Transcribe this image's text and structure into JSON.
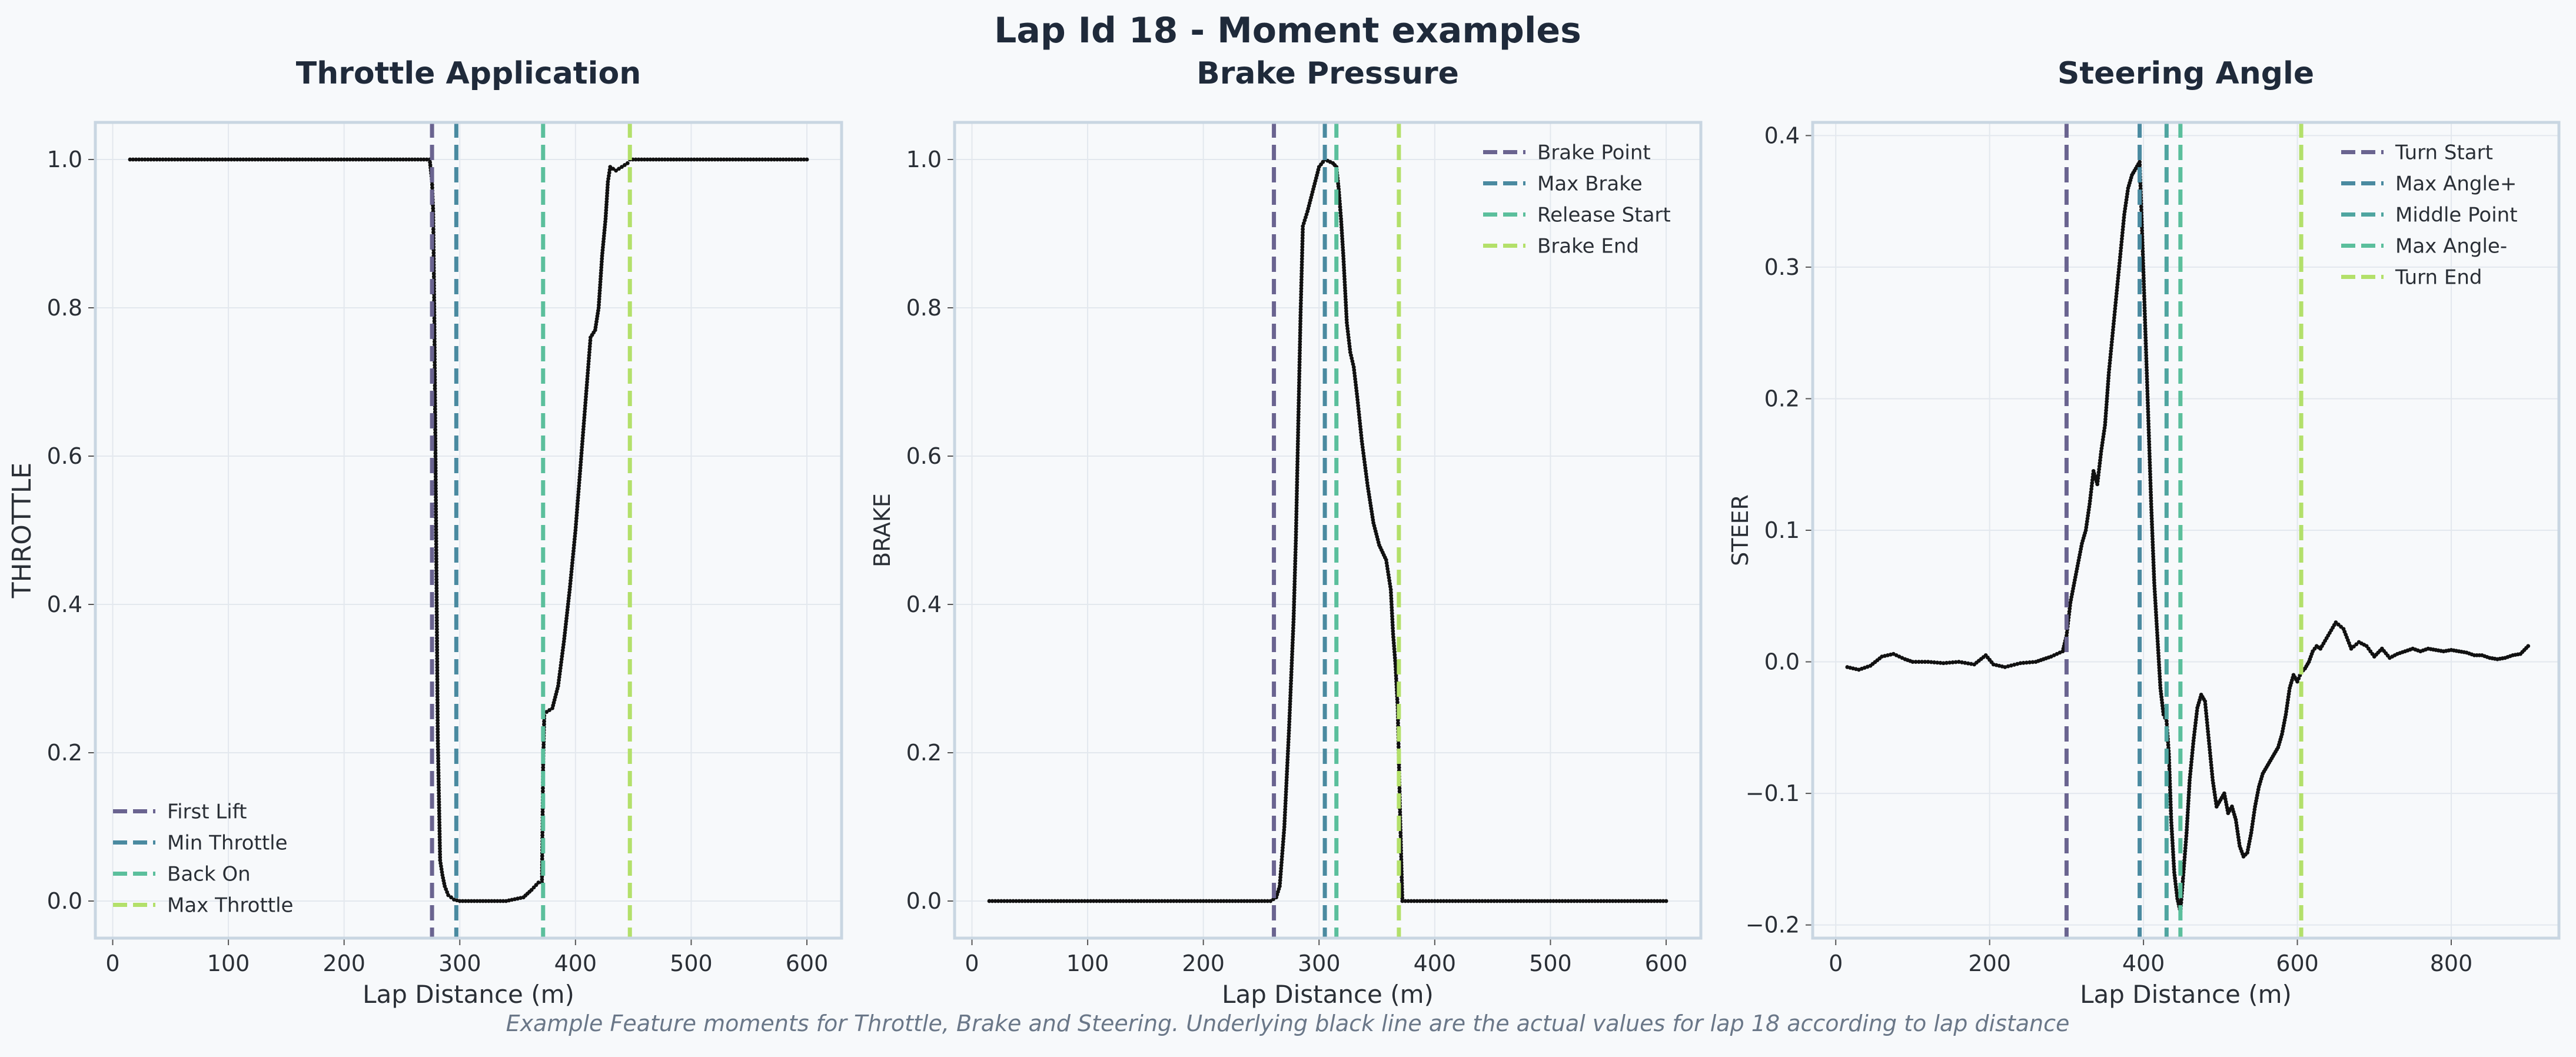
{
  "figure": {
    "title": "Lap Id 18 - Moment examples",
    "caption": "Example Feature moments for Throttle, Brake and Steering. Underlying black line are the actual values for lap 18 according to lap distance"
  },
  "chart_data": [
    {
      "type": "scatter",
      "title": "Throttle Application",
      "xlabel": "Lap Distance (m)",
      "ylabel": "THROTTLE",
      "xlim": [
        -15,
        630
      ],
      "ylim": [
        -0.05,
        1.05
      ],
      "xticks": [
        0,
        100,
        200,
        300,
        400,
        500,
        600
      ],
      "yticks": [
        0.0,
        0.2,
        0.4,
        0.6,
        0.8,
        1.0
      ],
      "grid": true,
      "legend_position": "bottom-left",
      "series": [
        {
          "name": "First Lift",
          "type": "vline",
          "x": 276,
          "color": "#6a6490"
        },
        {
          "name": "Min Throttle",
          "type": "vline",
          "x": 297,
          "color": "#4a8aa0"
        },
        {
          "name": "Back On",
          "type": "vline",
          "x": 372,
          "color": "#5bbf9c"
        },
        {
          "name": "Max Throttle",
          "type": "vline",
          "x": 447,
          "color": "#b3e06a"
        }
      ],
      "points": [
        [
          15,
          1.0
        ],
        [
          100,
          1.0
        ],
        [
          200,
          1.0
        ],
        [
          274,
          1.0
        ],
        [
          276,
          0.97
        ],
        [
          277,
          0.93
        ],
        [
          278,
          0.79
        ],
        [
          279,
          0.6
        ],
        [
          280,
          0.41
        ],
        [
          281,
          0.22
        ],
        [
          283,
          0.055
        ],
        [
          285,
          0.035
        ],
        [
          287,
          0.02
        ],
        [
          290,
          0.008
        ],
        [
          295,
          0.002
        ],
        [
          300,
          0.0
        ],
        [
          320,
          0.0
        ],
        [
          340,
          0.0
        ],
        [
          355,
          0.005
        ],
        [
          362,
          0.015
        ],
        [
          368,
          0.025
        ],
        [
          371,
          0.025
        ],
        [
          372,
          0.18
        ],
        [
          373,
          0.25
        ],
        [
          375,
          0.255
        ],
        [
          380,
          0.26
        ],
        [
          385,
          0.29
        ],
        [
          390,
          0.35
        ],
        [
          395,
          0.42
        ],
        [
          400,
          0.5
        ],
        [
          405,
          0.6
        ],
        [
          410,
          0.7
        ],
        [
          413,
          0.76
        ],
        [
          417,
          0.77
        ],
        [
          420,
          0.8
        ],
        [
          423,
          0.87
        ],
        [
          426,
          0.92
        ],
        [
          428,
          0.97
        ],
        [
          430,
          0.99
        ],
        [
          435,
          0.985
        ],
        [
          440,
          0.99
        ],
        [
          445,
          0.995
        ],
        [
          447,
          1.0
        ],
        [
          500,
          1.0
        ],
        [
          600,
          1.0
        ]
      ]
    },
    {
      "type": "scatter",
      "title": "Brake Pressure",
      "xlabel": "Lap Distance (m)",
      "ylabel": "BRAKE",
      "xlim": [
        -15,
        630
      ],
      "ylim": [
        -0.05,
        1.05
      ],
      "xticks": [
        0,
        100,
        200,
        300,
        400,
        500,
        600
      ],
      "yticks": [
        0.0,
        0.2,
        0.4,
        0.6,
        0.8,
        1.0
      ],
      "grid": true,
      "legend_position": "top-right",
      "series": [
        {
          "name": "Brake Point",
          "type": "vline",
          "x": 261,
          "color": "#6a6490"
        },
        {
          "name": "Max Brake",
          "type": "vline",
          "x": 305,
          "color": "#4a8aa0"
        },
        {
          "name": "Release Start",
          "type": "vline",
          "x": 315,
          "color": "#5bbf9c"
        },
        {
          "name": "Brake End",
          "type": "vline",
          "x": 369,
          "color": "#b3e06a"
        }
      ],
      "points": [
        [
          15,
          0.0
        ],
        [
          100,
          0.0
        ],
        [
          200,
          0.0
        ],
        [
          258,
          0.0
        ],
        [
          263,
          0.005
        ],
        [
          266,
          0.02
        ],
        [
          270,
          0.1
        ],
        [
          274,
          0.23
        ],
        [
          278,
          0.38
        ],
        [
          280,
          0.49
        ],
        [
          282,
          0.64
        ],
        [
          284,
          0.79
        ],
        [
          286,
          0.91
        ],
        [
          290,
          0.93
        ],
        [
          295,
          0.96
        ],
        [
          300,
          0.99
        ],
        [
          305,
          1.0
        ],
        [
          312,
          0.995
        ],
        [
          315,
          0.99
        ],
        [
          317,
          0.96
        ],
        [
          319,
          0.92
        ],
        [
          321,
          0.87
        ],
        [
          324,
          0.78
        ],
        [
          327,
          0.74
        ],
        [
          330,
          0.72
        ],
        [
          333,
          0.68
        ],
        [
          337,
          0.62
        ],
        [
          342,
          0.56
        ],
        [
          347,
          0.51
        ],
        [
          352,
          0.48
        ],
        [
          358,
          0.46
        ],
        [
          362,
          0.42
        ],
        [
          364,
          0.36
        ],
        [
          366,
          0.32
        ],
        [
          368,
          0.26
        ],
        [
          370,
          0.12
        ],
        [
          372,
          0.0
        ],
        [
          400,
          0.0
        ],
        [
          500,
          0.0
        ],
        [
          600,
          0.0
        ]
      ]
    },
    {
      "type": "scatter",
      "title": "Steering Angle",
      "xlabel": "Lap Distance (m)",
      "ylabel": "STEER",
      "xlim": [
        -30,
        940
      ],
      "ylim": [
        -0.21,
        0.41
      ],
      "xticks": [
        0,
        200,
        400,
        600,
        800
      ],
      "yticks": [
        -0.2,
        -0.1,
        0.0,
        0.1,
        0.2,
        0.3,
        0.4
      ],
      "ytick_labels": [
        "−0.2",
        "−0.1",
        "0.0",
        "0.1",
        "0.2",
        "0.3",
        "0.4"
      ],
      "grid": true,
      "legend_position": "top-right",
      "series": [
        {
          "name": "Turn Start",
          "type": "vline",
          "x": 300,
          "color": "#6a6490"
        },
        {
          "name": "Max Angle+",
          "type": "vline",
          "x": 395,
          "color": "#4a8aa0"
        },
        {
          "name": "Middle Point",
          "type": "vline",
          "x": 430,
          "color": "#4fa5a0"
        },
        {
          "name": "Max Angle-",
          "type": "vline",
          "x": 448,
          "color": "#5bbf9c"
        },
        {
          "name": "Turn End",
          "type": "vline",
          "x": 605,
          "color": "#b3e06a"
        }
      ],
      "points": [
        [
          15,
          -0.004
        ],
        [
          30,
          -0.006
        ],
        [
          45,
          -0.003
        ],
        [
          60,
          0.004
        ],
        [
          75,
          0.006
        ],
        [
          90,
          0.002
        ],
        [
          100,
          0.0
        ],
        [
          120,
          0.0
        ],
        [
          140,
          -0.001
        ],
        [
          160,
          0.0
        ],
        [
          180,
          -0.002
        ],
        [
          195,
          0.005
        ],
        [
          205,
          -0.002
        ],
        [
          220,
          -0.004
        ],
        [
          240,
          -0.001
        ],
        [
          260,
          0.0
        ],
        [
          280,
          0.004
        ],
        [
          295,
          0.008
        ],
        [
          300,
          0.02
        ],
        [
          305,
          0.045
        ],
        [
          310,
          0.06
        ],
        [
          315,
          0.075
        ],
        [
          320,
          0.09
        ],
        [
          325,
          0.1
        ],
        [
          330,
          0.12
        ],
        [
          335,
          0.145
        ],
        [
          340,
          0.135
        ],
        [
          345,
          0.16
        ],
        [
          350,
          0.18
        ],
        [
          355,
          0.22
        ],
        [
          360,
          0.25
        ],
        [
          365,
          0.28
        ],
        [
          370,
          0.31
        ],
        [
          375,
          0.34
        ],
        [
          380,
          0.36
        ],
        [
          385,
          0.37
        ],
        [
          390,
          0.375
        ],
        [
          395,
          0.38
        ],
        [
          398,
          0.33
        ],
        [
          402,
          0.26
        ],
        [
          406,
          0.19
        ],
        [
          410,
          0.12
        ],
        [
          414,
          0.06
        ],
        [
          418,
          0.02
        ],
        [
          422,
          -0.02
        ],
        [
          426,
          -0.04
        ],
        [
          430,
          -0.045
        ],
        [
          433,
          -0.07
        ],
        [
          436,
          -0.12
        ],
        [
          440,
          -0.16
        ],
        [
          444,
          -0.18
        ],
        [
          448,
          -0.19
        ],
        [
          452,
          -0.16
        ],
        [
          456,
          -0.13
        ],
        [
          460,
          -0.09
        ],
        [
          465,
          -0.06
        ],
        [
          470,
          -0.035
        ],
        [
          475,
          -0.025
        ],
        [
          480,
          -0.03
        ],
        [
          485,
          -0.06
        ],
        [
          490,
          -0.09
        ],
        [
          495,
          -0.11
        ],
        [
          500,
          -0.105
        ],
        [
          505,
          -0.1
        ],
        [
          510,
          -0.115
        ],
        [
          515,
          -0.11
        ],
        [
          520,
          -0.12
        ],
        [
          525,
          -0.14
        ],
        [
          530,
          -0.148
        ],
        [
          535,
          -0.145
        ],
        [
          540,
          -0.13
        ],
        [
          545,
          -0.11
        ],
        [
          550,
          -0.095
        ],
        [
          555,
          -0.085
        ],
        [
          560,
          -0.08
        ],
        [
          565,
          -0.075
        ],
        [
          570,
          -0.07
        ],
        [
          575,
          -0.065
        ],
        [
          580,
          -0.055
        ],
        [
          585,
          -0.04
        ],
        [
          590,
          -0.02
        ],
        [
          595,
          -0.01
        ],
        [
          600,
          -0.015
        ],
        [
          605,
          -0.008
        ],
        [
          610,
          -0.005
        ],
        [
          615,
          0.0
        ],
        [
          620,
          0.008
        ],
        [
          625,
          0.012
        ],
        [
          630,
          0.01
        ],
        [
          640,
          0.02
        ],
        [
          650,
          0.03
        ],
        [
          660,
          0.025
        ],
        [
          670,
          0.01
        ],
        [
          680,
          0.015
        ],
        [
          690,
          0.012
        ],
        [
          700,
          0.004
        ],
        [
          710,
          0.01
        ],
        [
          720,
          0.003
        ],
        [
          730,
          0.006
        ],
        [
          740,
          0.008
        ],
        [
          750,
          0.01
        ],
        [
          760,
          0.008
        ],
        [
          770,
          0.01
        ],
        [
          780,
          0.009
        ],
        [
          790,
          0.008
        ],
        [
          800,
          0.009
        ],
        [
          810,
          0.008
        ],
        [
          820,
          0.007
        ],
        [
          830,
          0.005
        ],
        [
          840,
          0.005
        ],
        [
          850,
          0.003
        ],
        [
          860,
          0.002
        ],
        [
          870,
          0.003
        ],
        [
          880,
          0.005
        ],
        [
          890,
          0.006
        ],
        [
          900,
          0.012
        ]
      ]
    }
  ]
}
